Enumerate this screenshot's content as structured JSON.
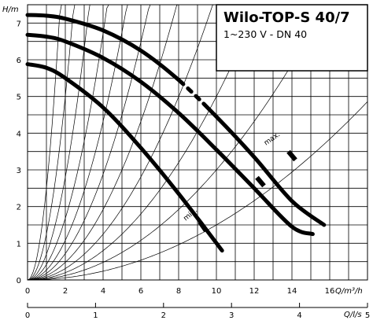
{
  "chart_data": {
    "type": "line",
    "title": "Wilo-TOP-S 40/7",
    "subtitle": "1~230 V - DN 40",
    "ylabel": "H/m",
    "xlabel": "Q/m³/h",
    "x2label": "Q/l/s",
    "xlim": [
      0,
      18
    ],
    "ylim": [
      0,
      7.5
    ],
    "x_ticks": [
      "0",
      "2",
      "4",
      "6",
      "8",
      "10",
      "12",
      "14",
      "16"
    ],
    "y_ticks": [
      "0",
      "1",
      "2",
      "3",
      "4",
      "5",
      "6",
      "7"
    ],
    "x2_ticks": [
      "0",
      "1",
      "2",
      "3",
      "4",
      "5"
    ],
    "grid": true,
    "curve_labels": {
      "max": "max.",
      "min": "min."
    },
    "series": [
      {
        "x": [
          0,
          1,
          2,
          4,
          6,
          8,
          10,
          12,
          14,
          15.7
        ],
        "y": [
          7.22,
          7.2,
          7.12,
          6.8,
          6.25,
          5.45,
          4.45,
          3.35,
          2.15,
          1.5
        ]
      },
      {
        "x": [
          0,
          1,
          2,
          4,
          6,
          8,
          10,
          12,
          14,
          15.1
        ],
        "y": [
          6.68,
          6.63,
          6.5,
          6.05,
          5.4,
          4.55,
          3.55,
          2.5,
          1.45,
          1.25
        ]
      },
      {
        "x": [
          0,
          1,
          2,
          4,
          6,
          8,
          10.3
        ],
        "y": [
          5.88,
          5.78,
          5.5,
          4.7,
          3.6,
          2.35,
          0.8
        ]
      }
    ]
  }
}
